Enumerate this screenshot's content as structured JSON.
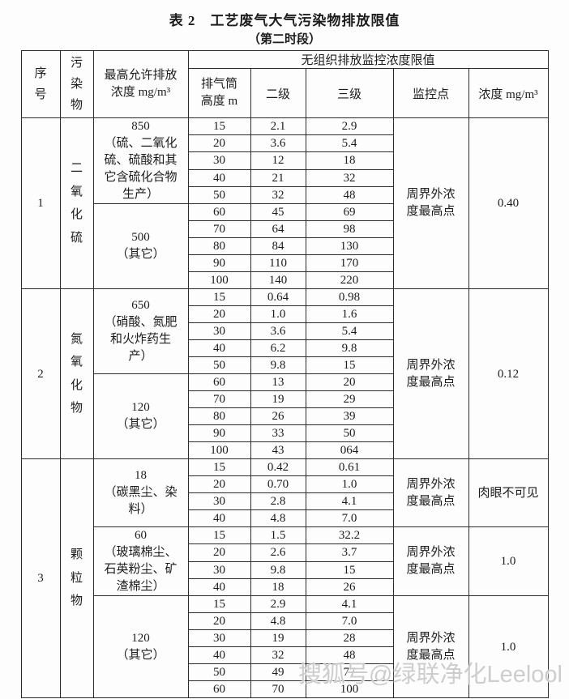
{
  "page": {
    "title": "表 2　工艺废气大气污染物排放限值",
    "subtitle": "（第二时段）",
    "watermark": "搜狐号@绿联净化Leelool"
  },
  "table": {
    "headers": {
      "no": "序号",
      "pollutant": "污染物",
      "max_conc": "最高允许排放 浓度 mg/m³",
      "unorganized": "无组织排放监控浓度限值",
      "stack_height": "排气筒 高度 m",
      "level2": "二级",
      "level3": "三级",
      "monitor_point": "监控点",
      "conc": "浓度 mg/m³"
    },
    "groups": [
      {
        "no": "1",
        "pollutant": "二氧化硫",
        "monitor": {
          "point": "周界外浓度最高点",
          "conc": "0.40"
        },
        "sections": [
          {
            "max": "850",
            "note": "（硫、二氧化硫、硫酸和其它含硫化合物生产）",
            "rows": [
              [
                "15",
                "2.1",
                "2.9"
              ],
              [
                "20",
                "3.6",
                "5.4"
              ],
              [
                "30",
                "12",
                "18"
              ],
              [
                "40",
                "21",
                "32"
              ],
              [
                "50",
                "32",
                "48"
              ]
            ]
          },
          {
            "max": "500",
            "note": "（其它）",
            "rows": [
              [
                "60",
                "45",
                "69"
              ],
              [
                "70",
                "64",
                "98"
              ],
              [
                "80",
                "84",
                "130"
              ],
              [
                "90",
                "110",
                "170"
              ],
              [
                "100",
                "140",
                "220"
              ]
            ]
          }
        ]
      },
      {
        "no": "2",
        "pollutant": "氮氧化物",
        "monitor": {
          "point": "周界外浓度最高点",
          "conc": "0.12"
        },
        "sections": [
          {
            "max": "650",
            "note": "（硝酸、氮肥和火炸药生产）",
            "rows": [
              [
                "15",
                "0.64",
                "0.98"
              ],
              [
                "20",
                "1.0",
                "1.6"
              ],
              [
                "30",
                "3.6",
                "5.4"
              ],
              [
                "40",
                "6.2",
                "9.8"
              ],
              [
                "50",
                "9.8",
                "15"
              ]
            ]
          },
          {
            "max": "120",
            "note": "（其它）",
            "rows": [
              [
                "60",
                "13",
                "20"
              ],
              [
                "70",
                "19",
                "29"
              ],
              [
                "80",
                "26",
                "39"
              ],
              [
                "90",
                "33",
                "50"
              ],
              [
                "100",
                "43",
                "064"
              ]
            ]
          }
        ]
      },
      {
        "no": "3",
        "pollutant": "颗粒物",
        "sections": [
          {
            "max": "18",
            "note": "（碳黑尘、染料）",
            "monitor": {
              "point": "周界外浓度最高点",
              "conc": "肉眼不可见"
            },
            "rows": [
              [
                "15",
                "0.42",
                "0.61"
              ],
              [
                "20",
                "0.70",
                "1.0"
              ],
              [
                "30",
                "2.8",
                "4.1"
              ],
              [
                "40",
                "4.8",
                "7.0"
              ]
            ]
          },
          {
            "max": "60",
            "note": "（玻璃棉尘、石英粉尘、矿渣棉尘）",
            "monitor": {
              "point": "周界外浓度最高点",
              "conc": "1.0"
            },
            "rows": [
              [
                "15",
                "1.5",
                "32.2"
              ],
              [
                "20",
                "2.6",
                "3.7"
              ],
              [
                "30",
                "9.8",
                "15"
              ],
              [
                "40",
                "18",
                "26"
              ]
            ]
          },
          {
            "max": "120",
            "note": "（其它）",
            "monitor": {
              "point": "周界外浓度最高点",
              "conc": "1.0"
            },
            "rows": [
              [
                "15",
                "2.9",
                "4.1"
              ],
              [
                "20",
                "4.8",
                "7.0"
              ],
              [
                "30",
                "19",
                "28"
              ],
              [
                "40",
                "32",
                "48"
              ],
              [
                "50",
                "49",
                "77"
              ],
              [
                "60",
                "70",
                "100"
              ]
            ]
          }
        ]
      }
    ]
  }
}
